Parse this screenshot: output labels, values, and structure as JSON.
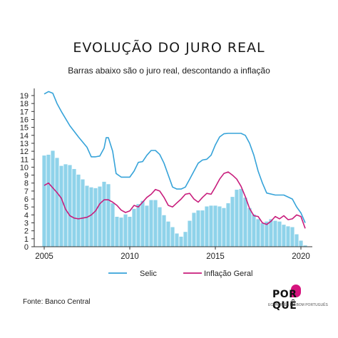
{
  "header": {
    "title": "EVOLUÇÃO DO JURO REAL",
    "subtitle": "Barras abaixo são o juro real, descontando a inflação"
  },
  "footer": {
    "source": "Fonte: Banco Central",
    "logo_text": "POR?QUÊ",
    "logo_tagline": "ECONOMÊS EM BOM PORTUGUÊS"
  },
  "colors": {
    "selic": "#36a3d9",
    "inflacao": "#c81d7c",
    "bars": "#8fd3ea",
    "bar_edge": "#ffffff",
    "axis": "#333333"
  },
  "chart_data": {
    "type": "bar",
    "title": "EVOLUÇÃO DO JURO REAL",
    "subtitle": "Barras abaixo são o juro real, descontando a inflação",
    "xlabel": "",
    "ylabel": "",
    "xlim": [
      2005,
      2020.5
    ],
    "ylim": [
      0,
      19
    ],
    "x_ticks": [
      2005,
      2010,
      2015,
      2020
    ],
    "y_ticks": [
      0,
      1,
      2,
      3,
      4,
      5,
      6,
      7,
      8,
      9,
      10,
      11,
      12,
      13,
      14,
      15,
      16,
      17,
      18,
      19
    ],
    "grid": false,
    "legend": {
      "position": "bottom"
    },
    "bars": {
      "x": [
        2005.0,
        2005.25,
        2005.5,
        2005.75,
        2006.0,
        2006.25,
        2006.5,
        2006.75,
        2007.0,
        2007.25,
        2007.5,
        2007.75,
        2008.0,
        2008.25,
        2008.5,
        2008.75,
        2009.0,
        2009.25,
        2009.5,
        2009.75,
        2010.0,
        2010.25,
        2010.5,
        2010.75,
        2011.0,
        2011.25,
        2011.5,
        2011.75,
        2012.0,
        2012.25,
        2012.5,
        2012.75,
        2013.0,
        2013.25,
        2013.5,
        2013.75,
        2014.0,
        2014.25,
        2014.5,
        2014.75,
        2015.0,
        2015.25,
        2015.5,
        2015.75,
        2016.0,
        2016.25,
        2016.5,
        2016.75,
        2017.0,
        2017.25,
        2017.5,
        2017.75,
        2018.0,
        2018.25,
        2018.5,
        2018.75,
        2019.0,
        2019.25,
        2019.5,
        2019.75,
        2020.0,
        2020.25
      ],
      "values": [
        11.5,
        11.6,
        12.1,
        11.2,
        10.2,
        10.4,
        10.3,
        9.8,
        9.1,
        8.5,
        7.7,
        7.5,
        7.4,
        7.6,
        8.2,
        7.9,
        5.5,
        3.8,
        3.7,
        4.1,
        3.8,
        4.8,
        5.4,
        5.8,
        5.2,
        5.9,
        5.9,
        5.0,
        4.0,
        3.2,
        2.5,
        1.7,
        1.3,
        1.9,
        3.3,
        4.3,
        4.6,
        4.6,
        5.1,
        5.2,
        5.2,
        5.1,
        4.9,
        5.5,
        6.3,
        7.2,
        7.3,
        6.2,
        4.9,
        4.1,
        3.5,
        3.0,
        3.2,
        3.5,
        3.3,
        3.2,
        2.8,
        2.6,
        2.5,
        1.6,
        0.8,
        0.2
      ]
    },
    "series": [
      {
        "name": "Selic",
        "x": [
          2005.0,
          2005.25,
          2005.5,
          2005.75,
          2006.0,
          2006.5,
          2007.0,
          2007.5,
          2007.75,
          2008.0,
          2008.25,
          2008.5,
          2008.62,
          2008.75,
          2009.0,
          2009.2,
          2009.5,
          2009.75,
          2010.0,
          2010.25,
          2010.5,
          2010.75,
          2011.0,
          2011.25,
          2011.5,
          2011.75,
          2012.0,
          2012.25,
          2012.5,
          2012.75,
          2013.0,
          2013.25,
          2013.5,
          2013.75,
          2014.0,
          2014.25,
          2014.5,
          2014.75,
          2015.0,
          2015.25,
          2015.5,
          2015.75,
          2016.0,
          2016.5,
          2016.75,
          2017.0,
          2017.25,
          2017.5,
          2017.75,
          2018.0,
          2018.5,
          2019.0,
          2019.5,
          2019.75,
          2020.0,
          2020.25
        ],
        "values": [
          19.2,
          19.5,
          19.3,
          18.0,
          17.0,
          15.2,
          13.8,
          12.5,
          11.3,
          11.3,
          11.4,
          12.4,
          13.7,
          13.7,
          12.0,
          9.2,
          8.75,
          8.75,
          8.75,
          9.5,
          10.6,
          10.7,
          11.5,
          12.1,
          12.1,
          11.6,
          10.5,
          9.0,
          7.5,
          7.25,
          7.25,
          7.5,
          8.5,
          9.5,
          10.5,
          10.9,
          11.0,
          11.5,
          12.8,
          13.8,
          14.2,
          14.25,
          14.25,
          14.25,
          14.0,
          13.0,
          11.5,
          9.5,
          8.0,
          6.75,
          6.5,
          6.5,
          6.0,
          5.0,
          4.25,
          3.0
        ]
      },
      {
        "name": "Inflação Geral",
        "x": [
          2005.0,
          2005.25,
          2005.5,
          2005.75,
          2006.0,
          2006.25,
          2006.5,
          2006.75,
          2007.0,
          2007.25,
          2007.5,
          2007.75,
          2008.0,
          2008.25,
          2008.5,
          2008.75,
          2009.0,
          2009.25,
          2009.5,
          2009.75,
          2010.0,
          2010.25,
          2010.5,
          2010.75,
          2011.0,
          2011.25,
          2011.5,
          2011.75,
          2012.0,
          2012.25,
          2012.5,
          2012.75,
          2013.0,
          2013.25,
          2013.5,
          2013.75,
          2014.0,
          2014.25,
          2014.5,
          2014.75,
          2015.0,
          2015.25,
          2015.5,
          2015.75,
          2016.0,
          2016.25,
          2016.5,
          2016.75,
          2017.0,
          2017.25,
          2017.5,
          2017.75,
          2018.0,
          2018.25,
          2018.5,
          2018.75,
          2019.0,
          2019.25,
          2019.5,
          2019.75,
          2020.0,
          2020.25
        ],
        "values": [
          7.7,
          8.0,
          7.4,
          6.8,
          6.1,
          4.7,
          3.9,
          3.6,
          3.5,
          3.6,
          3.7,
          4.0,
          4.5,
          5.4,
          5.9,
          5.9,
          5.6,
          5.2,
          4.6,
          4.3,
          4.5,
          5.2,
          5.0,
          5.6,
          6.2,
          6.6,
          7.2,
          7.0,
          6.2,
          5.2,
          5.0,
          5.5,
          6.0,
          6.6,
          6.7,
          6.0,
          5.6,
          6.2,
          6.7,
          6.6,
          7.5,
          8.5,
          9.2,
          9.4,
          9.0,
          8.5,
          7.6,
          6.3,
          4.8,
          3.9,
          3.8,
          3.0,
          2.8,
          3.2,
          3.8,
          3.5,
          3.9,
          3.4,
          3.5,
          4.0,
          3.8,
          2.3
        ]
      }
    ]
  }
}
